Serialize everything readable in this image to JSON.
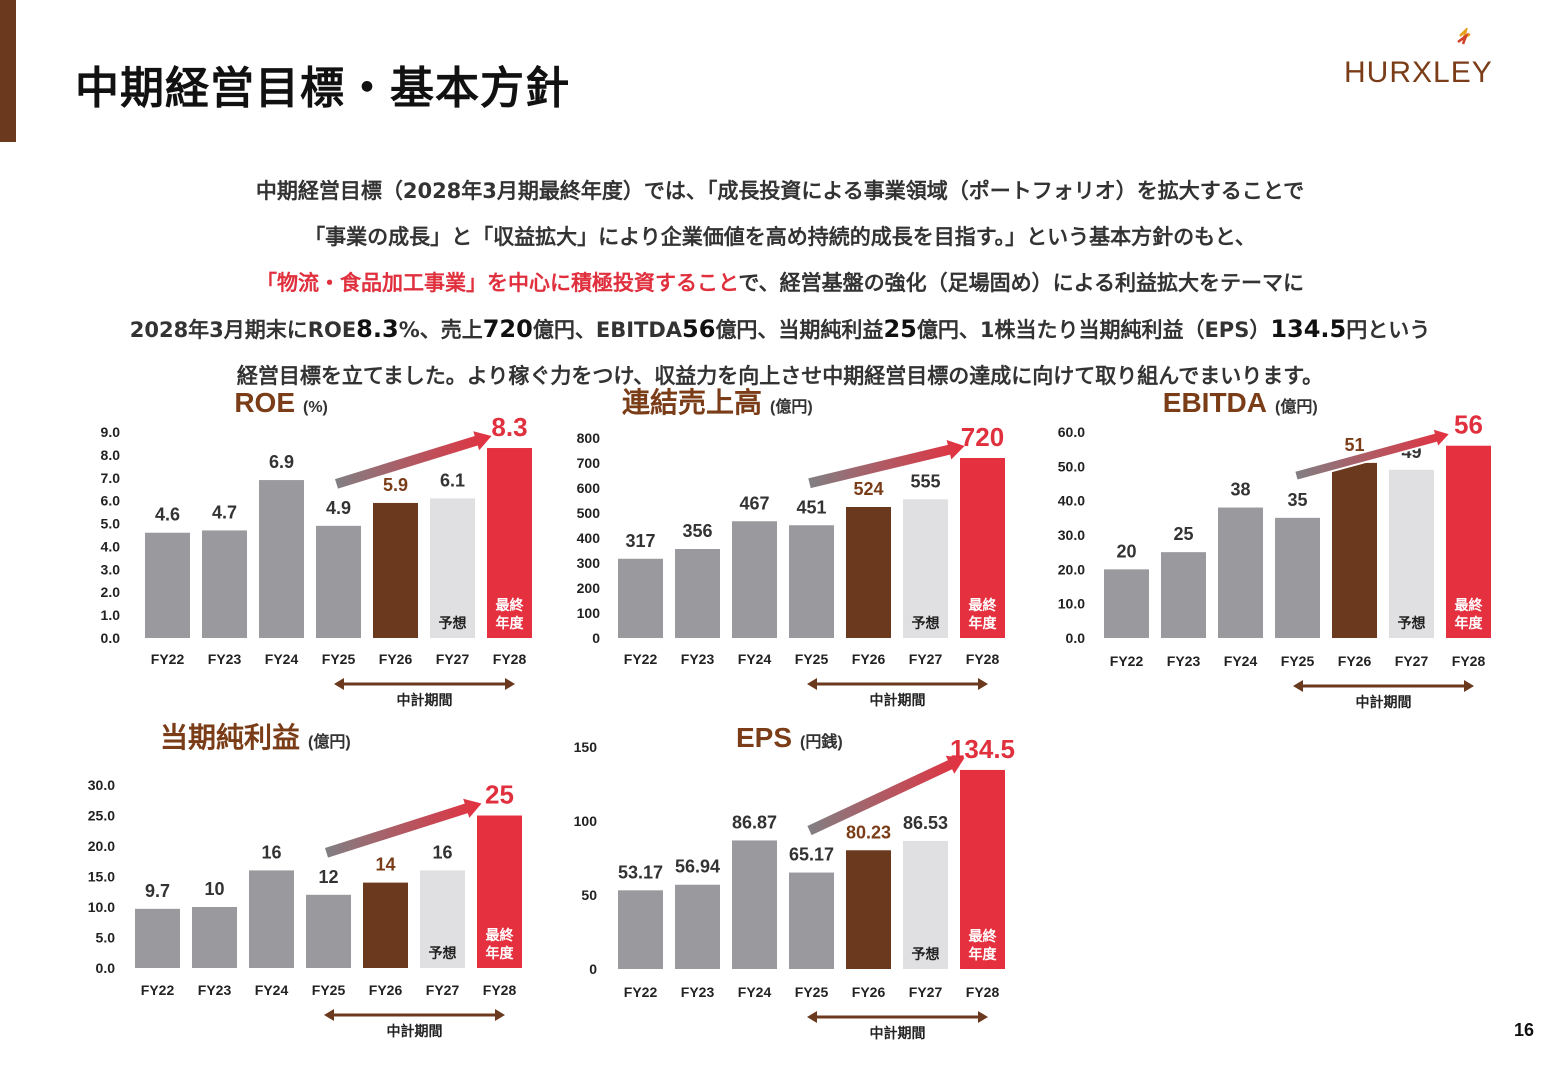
{
  "page": {
    "title": "中期経営目標・基本方針",
    "logo_text": "HURXLEY",
    "page_number": "16",
    "intro": {
      "line1": "中期経営目標（2028年3月期最終年度）では、「成長投資による事業領域（ポートフォリオ）を拡大することで",
      "line2": "「事業の成長」と「収益拡大」により企業価値を高め持続的成長を目指す。」という基本方針のもと、",
      "line3_highlight": "「物流・食品加工事業」を中心に積極投資すること",
      "line3_rest": "で、経営基盤の強化（足場固め）による利益拡大をテーマに",
      "line4": [
        {
          "t": "2028年3月期末に",
          "big": false
        },
        {
          "t": "ROE",
          "big": false
        },
        {
          "t": "8.3",
          "big": true
        },
        {
          "t": "%、売上",
          "big": false
        },
        {
          "t": "720",
          "big": true
        },
        {
          "t": "億円、EBITDA",
          "big": false
        },
        {
          "t": "56",
          "big": true
        },
        {
          "t": "億円、当期純利益",
          "big": false
        },
        {
          "t": "25",
          "big": true
        },
        {
          "t": "億円、1株当たり当期純利益（EPS）",
          "big": false
        },
        {
          "t": "134.5",
          "big": true
        },
        {
          "t": "円という",
          "big": false
        }
      ],
      "line5": "経営目標を立てました。より稼ぐ力をつけ、収益力を向上させ中期経営目標の達成に向けて取り組んでまいります。"
    }
  },
  "colors": {
    "accent_brown": "#6b3a1e",
    "bar_gray": "#9a9a9e",
    "bar_light": "#e0e0e2",
    "bar_red": "#e5303f",
    "text_red": "#e0303e",
    "text_brown": "#7a3d18"
  },
  "chart_data": [
    {
      "id": "roe",
      "type": "bar",
      "title": "ROE",
      "unit": "(%)",
      "categories": [
        "FY22",
        "FY23",
        "FY24",
        "FY25",
        "FY26",
        "FY27",
        "FY28"
      ],
      "values": [
        4.6,
        4.7,
        6.9,
        4.9,
        5.9,
        6.1,
        8.3
      ],
      "value_labels": [
        "4.6",
        "4.7",
        "6.9",
        "4.9",
        "5.9",
        "6.1",
        "8.3"
      ],
      "yticks": [
        "9.0",
        "8.0",
        "7.0",
        "6.0",
        "5.0",
        "4.0",
        "3.0",
        "2.0",
        "1.0",
        "0.0"
      ],
      "ylim": [
        0,
        9
      ],
      "bar_styles": [
        "gray",
        "gray",
        "gray",
        "gray",
        "brown",
        "light",
        "red"
      ],
      "forecast_label": "予想",
      "final_label": [
        "最終",
        "年度"
      ],
      "period_label": "中計期間"
    },
    {
      "id": "sales",
      "type": "bar",
      "title": "連結売上高",
      "unit": "(億円)",
      "categories": [
        "FY22",
        "FY23",
        "FY24",
        "FY25",
        "FY26",
        "FY27",
        "FY28"
      ],
      "values": [
        317,
        356,
        467,
        451,
        524,
        555,
        720
      ],
      "value_labels": [
        "317",
        "356",
        "467",
        "451",
        "524",
        "555",
        "720"
      ],
      "yticks": [
        "800",
        "700",
        "600",
        "500",
        "400",
        "300",
        "200",
        "100",
        "0"
      ],
      "ylim": [
        0,
        800
      ],
      "bar_styles": [
        "gray",
        "gray",
        "gray",
        "gray",
        "brown",
        "light",
        "red"
      ],
      "forecast_label": "予想",
      "final_label": [
        "最終",
        "年度"
      ],
      "period_label": "中計期間"
    },
    {
      "id": "ebitda",
      "type": "bar",
      "title": "EBITDA",
      "unit": "(億円)",
      "categories": [
        "FY22",
        "FY23",
        "FY24",
        "FY25",
        "FY26",
        "FY27",
        "FY28"
      ],
      "values": [
        20,
        25,
        38,
        35,
        51,
        49,
        56
      ],
      "value_labels": [
        "20",
        "25",
        "38",
        "35",
        "51",
        "49",
        "56"
      ],
      "yticks": [
        "60.0",
        "50.0",
        "40.0",
        "30.0",
        "20.0",
        "10.0",
        "0.0"
      ],
      "ylim": [
        0,
        60
      ],
      "bar_styles": [
        "gray",
        "gray",
        "gray",
        "gray",
        "brown",
        "light",
        "red"
      ],
      "forecast_label": "予想",
      "final_label": [
        "最終",
        "年度"
      ],
      "period_label": "中計期間"
    },
    {
      "id": "net_income",
      "type": "bar",
      "title": "当期純利益",
      "unit": "(億円)",
      "categories": [
        "FY22",
        "FY23",
        "FY24",
        "FY25",
        "FY26",
        "FY27",
        "FY28"
      ],
      "values": [
        9.7,
        10,
        16,
        12,
        14,
        16,
        25
      ],
      "value_labels": [
        "9.7",
        "10",
        "16",
        "12",
        "14",
        "16",
        "25"
      ],
      "yticks": [
        "30.0",
        "25.0",
        "20.0",
        "15.0",
        "10.0",
        "5.0",
        "0.0"
      ],
      "ylim": [
        0,
        30
      ],
      "bar_styles": [
        "gray",
        "gray",
        "gray",
        "gray",
        "brown",
        "light",
        "red"
      ],
      "forecast_label": "予想",
      "final_label": [
        "最終",
        "年度"
      ],
      "period_label": "中計期間"
    },
    {
      "id": "eps",
      "type": "bar",
      "title": "EPS",
      "unit": "(円銭)",
      "categories": [
        "FY22",
        "FY23",
        "FY24",
        "FY25",
        "FY26",
        "FY27",
        "FY28"
      ],
      "values": [
        53.17,
        56.94,
        86.87,
        65.17,
        80.23,
        86.53,
        134.5
      ],
      "value_labels": [
        "53.17",
        "56.94",
        "86.87",
        "65.17",
        "80.23",
        "86.53",
        "134.5"
      ],
      "yticks": [
        "150",
        "100",
        "50",
        "0"
      ],
      "ylim": [
        0,
        150
      ],
      "bar_styles": [
        "gray",
        "gray",
        "gray",
        "gray",
        "brown",
        "light",
        "red"
      ],
      "forecast_label": "予想",
      "final_label": [
        "最終",
        "年度"
      ],
      "period_label": "中計期間"
    }
  ]
}
